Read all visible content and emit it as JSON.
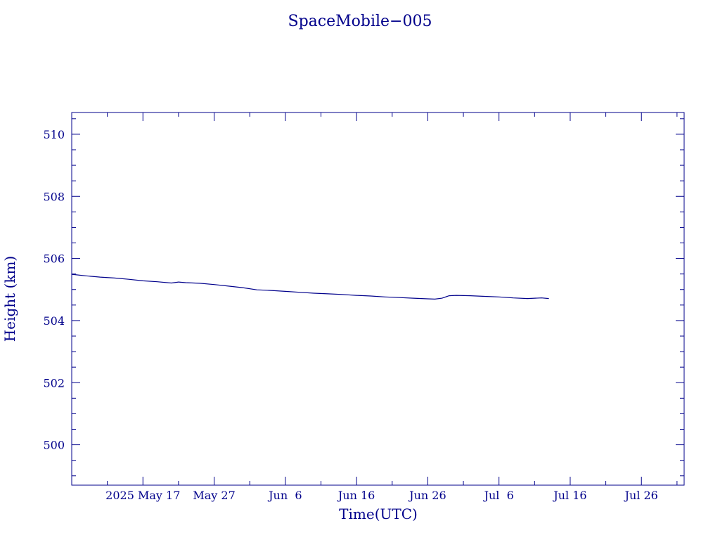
{
  "chart_data": {
    "type": "line",
    "title": "SpaceMobile−005",
    "xlabel": "Time(UTC)",
    "ylabel": "Height (km)",
    "x_unit": "date",
    "xlim": [
      "2025-05-07",
      "2025-08-01"
    ],
    "ylim": [
      498.7,
      510.7
    ],
    "y_ticks": [
      500,
      502,
      504,
      506,
      508,
      510
    ],
    "x_ticks": [
      {
        "date": "2025-05-17",
        "label": "2025 May 17"
      },
      {
        "date": "2025-05-27",
        "label": "May 27"
      },
      {
        "date": "2025-06-06",
        "label": "Jun  6"
      },
      {
        "date": "2025-06-16",
        "label": "Jun 16"
      },
      {
        "date": "2025-06-26",
        "label": "Jun 26"
      },
      {
        "date": "2025-07-06",
        "label": "Jul  6"
      },
      {
        "date": "2025-07-16",
        "label": "Jul 16"
      },
      {
        "date": "2025-07-26",
        "label": "Jul 26"
      }
    ],
    "x_minor_step_days": 5,
    "y_minor_step": 0.5,
    "grid": false,
    "color": "#00008b",
    "series": [
      {
        "x": [
          "2025-05-07",
          "2025-05-09",
          "2025-05-11",
          "2025-05-13",
          "2025-05-15",
          "2025-05-17",
          "2025-05-19",
          "2025-05-21",
          "2025-05-22",
          "2025-05-23",
          "2025-05-25",
          "2025-05-27",
          "2025-05-29",
          "2025-05-31",
          "2025-06-02",
          "2025-06-04",
          "2025-06-06",
          "2025-06-08",
          "2025-06-10",
          "2025-06-12",
          "2025-06-14",
          "2025-06-16",
          "2025-06-18",
          "2025-06-20",
          "2025-06-22",
          "2025-06-24",
          "2025-06-26",
          "2025-06-27",
          "2025-06-28",
          "2025-06-29",
          "2025-06-30",
          "2025-07-02",
          "2025-07-04",
          "2025-07-06",
          "2025-07-08",
          "2025-07-10",
          "2025-07-12",
          "2025-07-13"
        ],
        "y": [
          505.49,
          505.44,
          505.4,
          505.37,
          505.33,
          505.28,
          505.25,
          505.21,
          505.24,
          505.22,
          505.2,
          505.16,
          505.11,
          505.06,
          504.99,
          504.97,
          504.94,
          504.91,
          504.88,
          504.86,
          504.84,
          504.81,
          504.79,
          504.76,
          504.74,
          504.72,
          504.7,
          504.69,
          504.72,
          504.8,
          504.81,
          504.8,
          504.78,
          504.76,
          504.73,
          504.71,
          504.73,
          504.71
        ]
      }
    ]
  }
}
